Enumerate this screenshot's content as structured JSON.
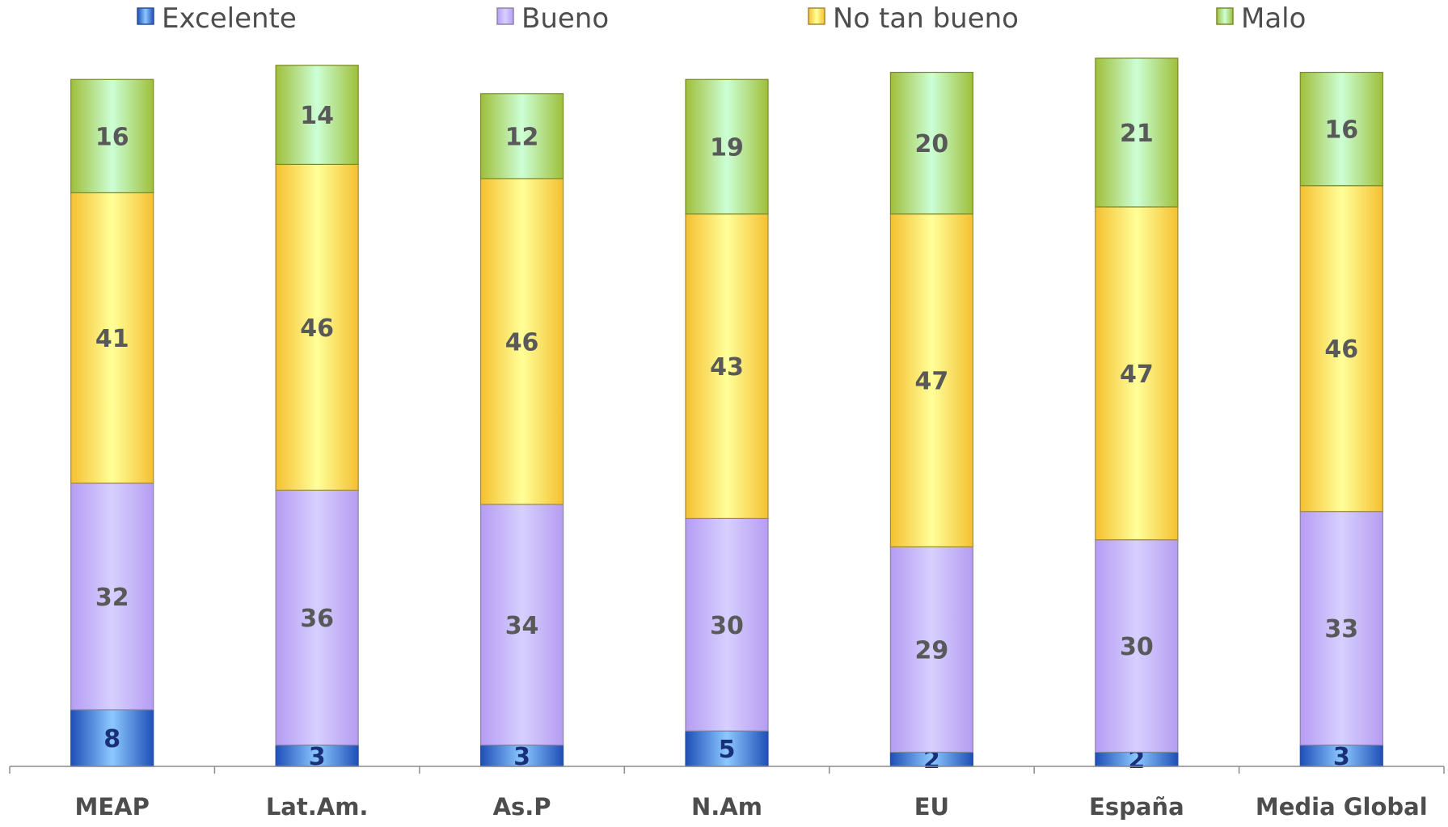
{
  "chart_data": {
    "type": "bar",
    "stacked": true,
    "categories": [
      "MEAP",
      "Lat.Am.",
      "As.P",
      "N.Am",
      "EU",
      "España",
      "Media Global"
    ],
    "series": [
      {
        "name": "Excelente",
        "values": [
          8,
          3,
          3,
          5,
          2,
          2,
          3
        ],
        "color": "#2e6fd6",
        "label_color": "#1a2f7a"
      },
      {
        "name": "Bueno",
        "values": [
          32,
          36,
          34,
          30,
          29,
          30,
          33
        ],
        "color": "#c8b8ff",
        "label_color": "#595959"
      },
      {
        "name": "No tan bueno",
        "values": [
          41,
          46,
          46,
          43,
          47,
          47,
          46
        ],
        "color": "#ffe36b",
        "label_color": "#595959"
      },
      {
        "name": "Malo",
        "values": [
          16,
          14,
          12,
          19,
          20,
          21,
          16
        ],
        "color": "#c9f5b5",
        "label_color": "#595959"
      }
    ],
    "legend_position": "top",
    "grid": false
  }
}
